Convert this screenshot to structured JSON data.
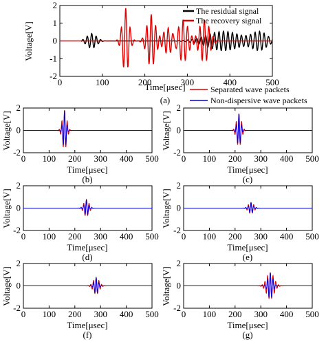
{
  "figure": {
    "x_label": "Time[μsec]",
    "y_label": "Voltage[V]"
  },
  "legend_top": {
    "items": [
      {
        "label": "The residual signal",
        "color": "#000000"
      },
      {
        "label": "The recovery signal",
        "color": "#e00000"
      }
    ]
  },
  "legend_mid": {
    "items": [
      {
        "label": "Separated wave packets",
        "color": "#e00000"
      },
      {
        "label": "Non-dispersive wave packets",
        "color": "#0000e0"
      }
    ]
  },
  "chart_data": [
    {
      "type": "line",
      "panel": "(a)",
      "xlim": [
        0,
        500
      ],
      "ylim": [
        -2,
        2
      ],
      "xticks": [
        "0",
        "100",
        "200",
        "300",
        "400",
        "500"
      ],
      "yticks": [
        "2",
        "1",
        "0",
        "-1",
        "-2"
      ],
      "series": [
        {
          "name": "The residual signal",
          "color": "#000000",
          "packets": [
            {
              "center": 75,
              "width": 16,
              "amp": 0.42,
              "freq": 0.095
            },
            {
              "center": 385,
              "width": 55,
              "amp": 0.55,
              "freq": 0.095
            },
            {
              "center": 470,
              "width": 25,
              "amp": 0.5,
              "freq": 0.095
            }
          ]
        },
        {
          "name": "The recovery signal",
          "color": "#e00000",
          "packets": [
            {
              "center": 155,
              "width": 11,
              "amp": 1.85,
              "freq": 0.095
            },
            {
              "center": 215,
              "width": 14,
              "amp": 1.5,
              "freq": 0.095
            },
            {
              "center": 255,
              "width": 16,
              "amp": 0.75,
              "freq": 0.095
            },
            {
              "center": 290,
              "width": 17,
              "amp": 1.2,
              "freq": 0.095
            },
            {
              "center": 340,
              "width": 17,
              "amp": 1.2,
              "freq": 0.095
            }
          ]
        }
      ]
    },
    {
      "type": "line",
      "panel": "(b)",
      "xlim": [
        0,
        500
      ],
      "ylim": [
        -2,
        2
      ],
      "xticks": [
        "0",
        "100",
        "200",
        "300",
        "400",
        "500"
      ],
      "yticks": [
        "2",
        "0",
        "-2"
      ],
      "series": [
        {
          "name": "Separated wave packets",
          "color": "#e00000",
          "packets": [
            {
              "center": 160,
              "width": 12,
              "amp": 1.8,
              "freq": 0.095
            }
          ]
        },
        {
          "name": "Non-dispersive wave packets",
          "color": "#0000e0",
          "packets": [
            {
              "center": 160,
              "width": 9,
              "amp": 1.75,
              "freq": 0.095
            }
          ]
        }
      ]
    },
    {
      "type": "line",
      "panel": "(c)",
      "xlim": [
        0,
        500
      ],
      "ylim": [
        -2,
        2
      ],
      "xticks": [
        "0",
        "100",
        "200",
        "300",
        "400",
        "500"
      ],
      "yticks": [
        "2",
        "0",
        "-2"
      ],
      "series": [
        {
          "name": "Separated wave packets",
          "color": "#e00000",
          "packets": [
            {
              "center": 215,
              "width": 13,
              "amp": 1.5,
              "freq": 0.095
            }
          ]
        },
        {
          "name": "Non-dispersive wave packets",
          "color": "#0000e0",
          "packets": [
            {
              "center": 215,
              "width": 10,
              "amp": 1.45,
              "freq": 0.095
            }
          ]
        }
      ]
    },
    {
      "type": "line",
      "panel": "(d)",
      "xlim": [
        0,
        500
      ],
      "ylim": [
        -2,
        2
      ],
      "xticks": [
        "0",
        "100",
        "200",
        "300",
        "400",
        "500"
      ],
      "yticks": [
        "2",
        "0",
        "-2"
      ],
      "series": [
        {
          "name": "Separated wave packets",
          "color": "#e00000",
          "packets": [
            {
              "center": 245,
              "width": 14,
              "amp": 0.75,
              "freq": 0.095
            }
          ]
        },
        {
          "name": "Non-dispersive wave packets",
          "color": "#0000e0",
          "packets": [
            {
              "center": 245,
              "width": 10,
              "amp": 0.72,
              "freq": 0.095
            }
          ]
        }
      ]
    },
    {
      "type": "line",
      "panel": "(e)",
      "xlim": [
        0,
        500
      ],
      "ylim": [
        -2,
        2
      ],
      "xticks": [
        "0",
        "100",
        "200",
        "300",
        "400",
        "500"
      ],
      "yticks": [
        "2",
        "0",
        "-2"
      ],
      "series": [
        {
          "name": "Separated wave packets",
          "color": "#e00000",
          "packets": [
            {
              "center": 262,
              "width": 15,
              "amp": 0.5,
              "freq": 0.095
            }
          ]
        },
        {
          "name": "Non-dispersive wave packets",
          "color": "#0000e0",
          "packets": [
            {
              "center": 262,
              "width": 10,
              "amp": 0.48,
              "freq": 0.095
            }
          ]
        }
      ]
    },
    {
      "type": "line",
      "panel": "(f)",
      "xlim": [
        0,
        500
      ],
      "ylim": [
        -2,
        2
      ],
      "xticks": [
        "0",
        "100",
        "200",
        "300",
        "400",
        "500"
      ],
      "yticks": [
        "2",
        "0",
        "-2"
      ],
      "series": [
        {
          "name": "Separated wave packets",
          "color": "#e00000",
          "packets": [
            {
              "center": 283,
              "width": 16,
              "amp": 0.75,
              "freq": 0.095
            }
          ]
        },
        {
          "name": "Non-dispersive wave packets",
          "color": "#0000e0",
          "packets": [
            {
              "center": 283,
              "width": 11,
              "amp": 0.72,
              "freq": 0.095
            }
          ]
        }
      ]
    },
    {
      "type": "line",
      "panel": "(g)",
      "xlim": [
        0,
        500
      ],
      "ylim": [
        -2,
        2
      ],
      "xticks": [
        "0",
        "100",
        "200",
        "300",
        "400",
        "500"
      ],
      "yticks": [
        "2",
        "0",
        "-2"
      ],
      "series": [
        {
          "name": "Separated wave packets",
          "color": "#e00000",
          "packets": [
            {
              "center": 337,
              "width": 20,
              "amp": 1.2,
              "freq": 0.095
            }
          ]
        },
        {
          "name": "Non-dispersive wave packets",
          "color": "#0000e0",
          "packets": [
            {
              "center": 337,
              "width": 13,
              "amp": 1.15,
              "freq": 0.095
            }
          ]
        }
      ]
    }
  ]
}
